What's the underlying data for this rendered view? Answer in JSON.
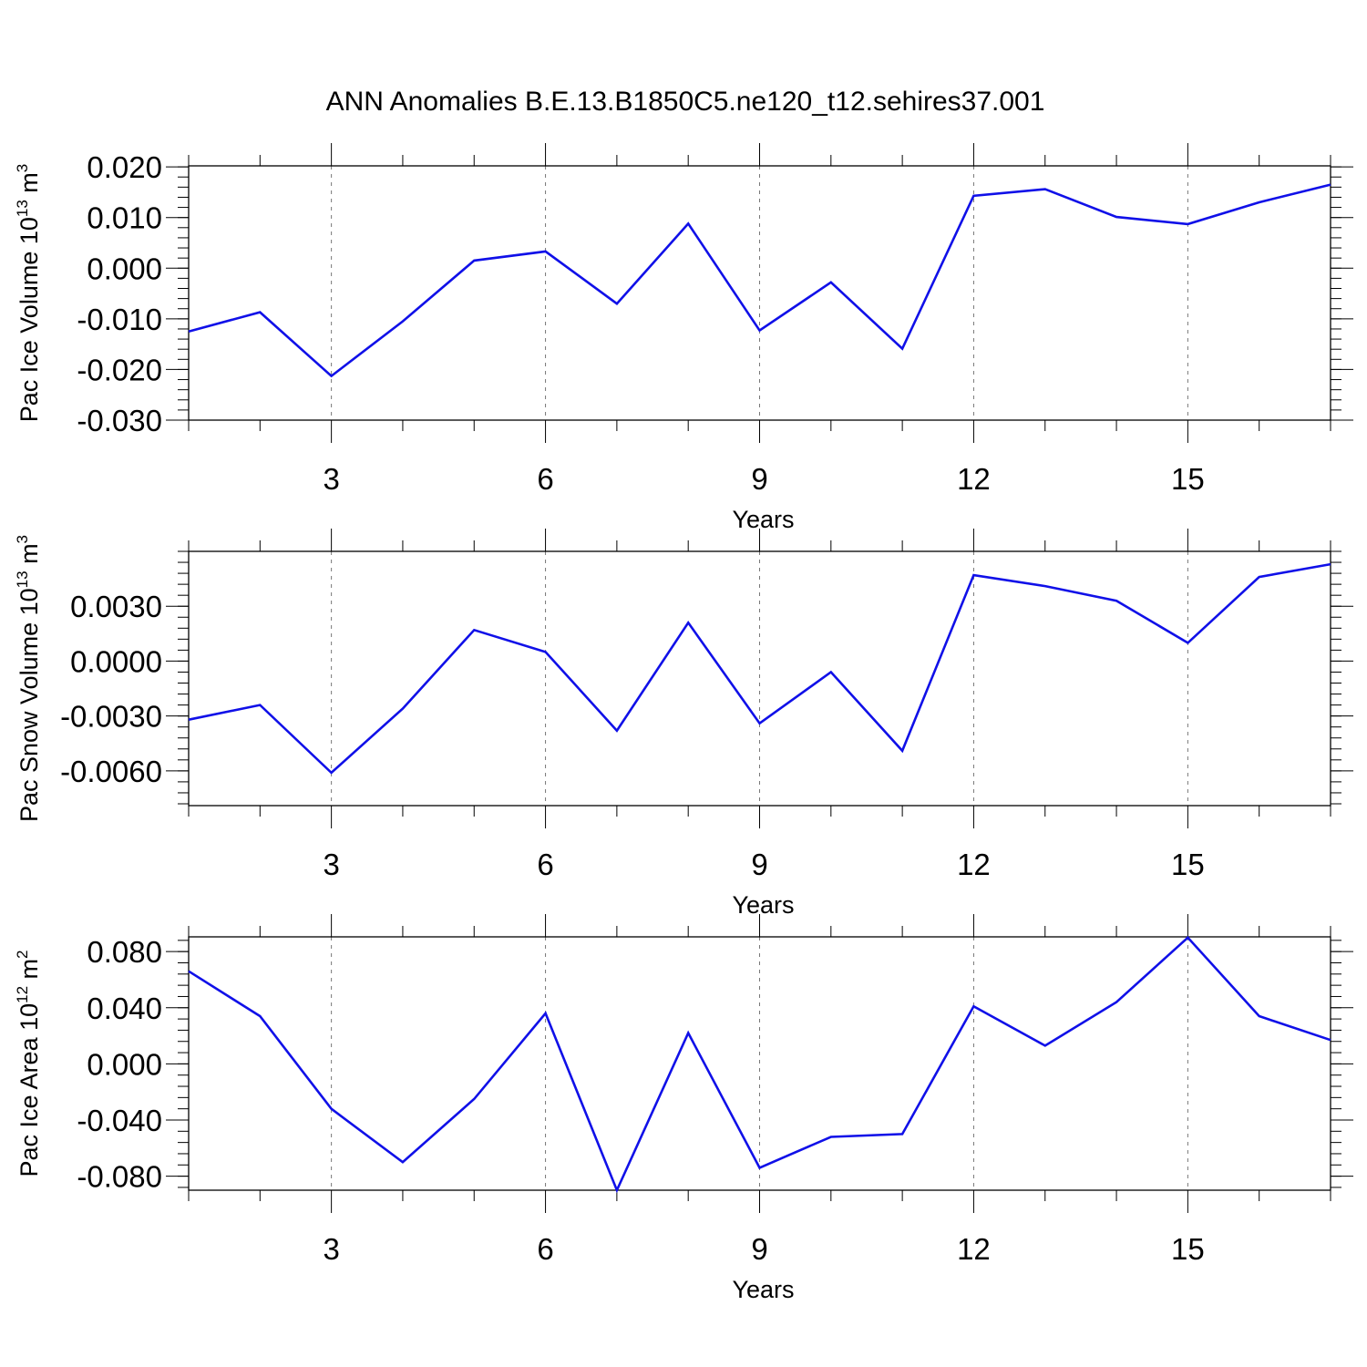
{
  "title": "ANN Anomalies B.E.13.B1850C5.ne120_t12.sehires37.001",
  "line_color": "#1010e8",
  "chart_data": [
    {
      "type": "line",
      "ylabel": "Pac Ice Volume 10",
      "ylabel_exp": "13",
      "ylabel_unit": " m",
      "ylabel_unit_exp": "3",
      "xlabel": "Years",
      "xlim": [
        1,
        17
      ],
      "x_ticks": [
        3,
        6,
        9,
        12,
        15
      ],
      "x_tick_labels": [
        "3",
        "6",
        "9",
        "12",
        "15"
      ],
      "ylim": [
        -0.03,
        0.0202
      ],
      "y_ticks": [
        -0.03,
        -0.02,
        -0.01,
        0.0,
        0.01,
        0.02
      ],
      "y_tick_labels": [
        "-0.030",
        "-0.020",
        "-0.010",
        "0.000",
        "0.010",
        "0.020"
      ],
      "y_minor_step": 0.002,
      "grid": "vertical dashed at major x ticks",
      "x": [
        1,
        2,
        3,
        4,
        5,
        6,
        7,
        8,
        9,
        10,
        11,
        12,
        13,
        14,
        15,
        16,
        17
      ],
      "values": [
        -0.0125,
        -0.0087,
        -0.0213,
        -0.0105,
        0.0015,
        0.0033,
        -0.007,
        0.0088,
        -0.0123,
        -0.0028,
        -0.0159,
        0.0143,
        0.0156,
        0.0101,
        0.0087,
        0.013,
        0.0165
      ]
    },
    {
      "type": "line",
      "ylabel": "Pac Snow Volume 10",
      "ylabel_exp": "13",
      "ylabel_unit": " m",
      "ylabel_unit_exp": "3",
      "xlabel": "Years",
      "xlim": [
        1,
        17
      ],
      "x_ticks": [
        3,
        6,
        9,
        12,
        15
      ],
      "x_tick_labels": [
        "3",
        "6",
        "9",
        "12",
        "15"
      ],
      "ylim": [
        -0.0079,
        0.006
      ],
      "y_ticks": [
        -0.006,
        -0.003,
        0.0,
        0.003
      ],
      "y_tick_labels": [
        "-0.0060",
        "-0.0030",
        "0.0000",
        "0.0030"
      ],
      "y_minor_step": 0.0006,
      "grid": "vertical dashed at major x ticks",
      "x": [
        1,
        2,
        3,
        4,
        5,
        6,
        7,
        8,
        9,
        10,
        11,
        12,
        13,
        14,
        15,
        16,
        17
      ],
      "values": [
        -0.0032,
        -0.0024,
        -0.0061,
        -0.0026,
        0.0017,
        0.0005,
        -0.0038,
        0.0021,
        -0.0034,
        -0.0006,
        -0.0049,
        0.0047,
        0.0041,
        0.0033,
        0.001,
        0.0046,
        0.0053
      ]
    },
    {
      "type": "line",
      "ylabel": "Pac Ice Area 10",
      "ylabel_exp": "12",
      "ylabel_unit": " m",
      "ylabel_unit_exp": "2",
      "xlabel": "Years",
      "xlim": [
        1,
        17
      ],
      "x_ticks": [
        3,
        6,
        9,
        12,
        15
      ],
      "x_tick_labels": [
        "3",
        "6",
        "9",
        "12",
        "15"
      ],
      "ylim": [
        -0.09,
        0.0905
      ],
      "y_ticks": [
        -0.08,
        -0.04,
        0.0,
        0.04,
        0.08
      ],
      "y_tick_labels": [
        "-0.080",
        "-0.040",
        "0.000",
        "0.040",
        "0.080"
      ],
      "y_minor_step": 0.008,
      "grid": "vertical dashed at major x ticks",
      "x": [
        1,
        2,
        3,
        4,
        5,
        6,
        7,
        8,
        9,
        10,
        11,
        12,
        13,
        14,
        15,
        16,
        17
      ],
      "values": [
        0.066,
        0.034,
        -0.032,
        -0.07,
        -0.025,
        0.036,
        -0.09,
        0.022,
        -0.074,
        -0.052,
        -0.05,
        0.041,
        0.013,
        0.044,
        0.09,
        0.034,
        0.017
      ]
    }
  ]
}
